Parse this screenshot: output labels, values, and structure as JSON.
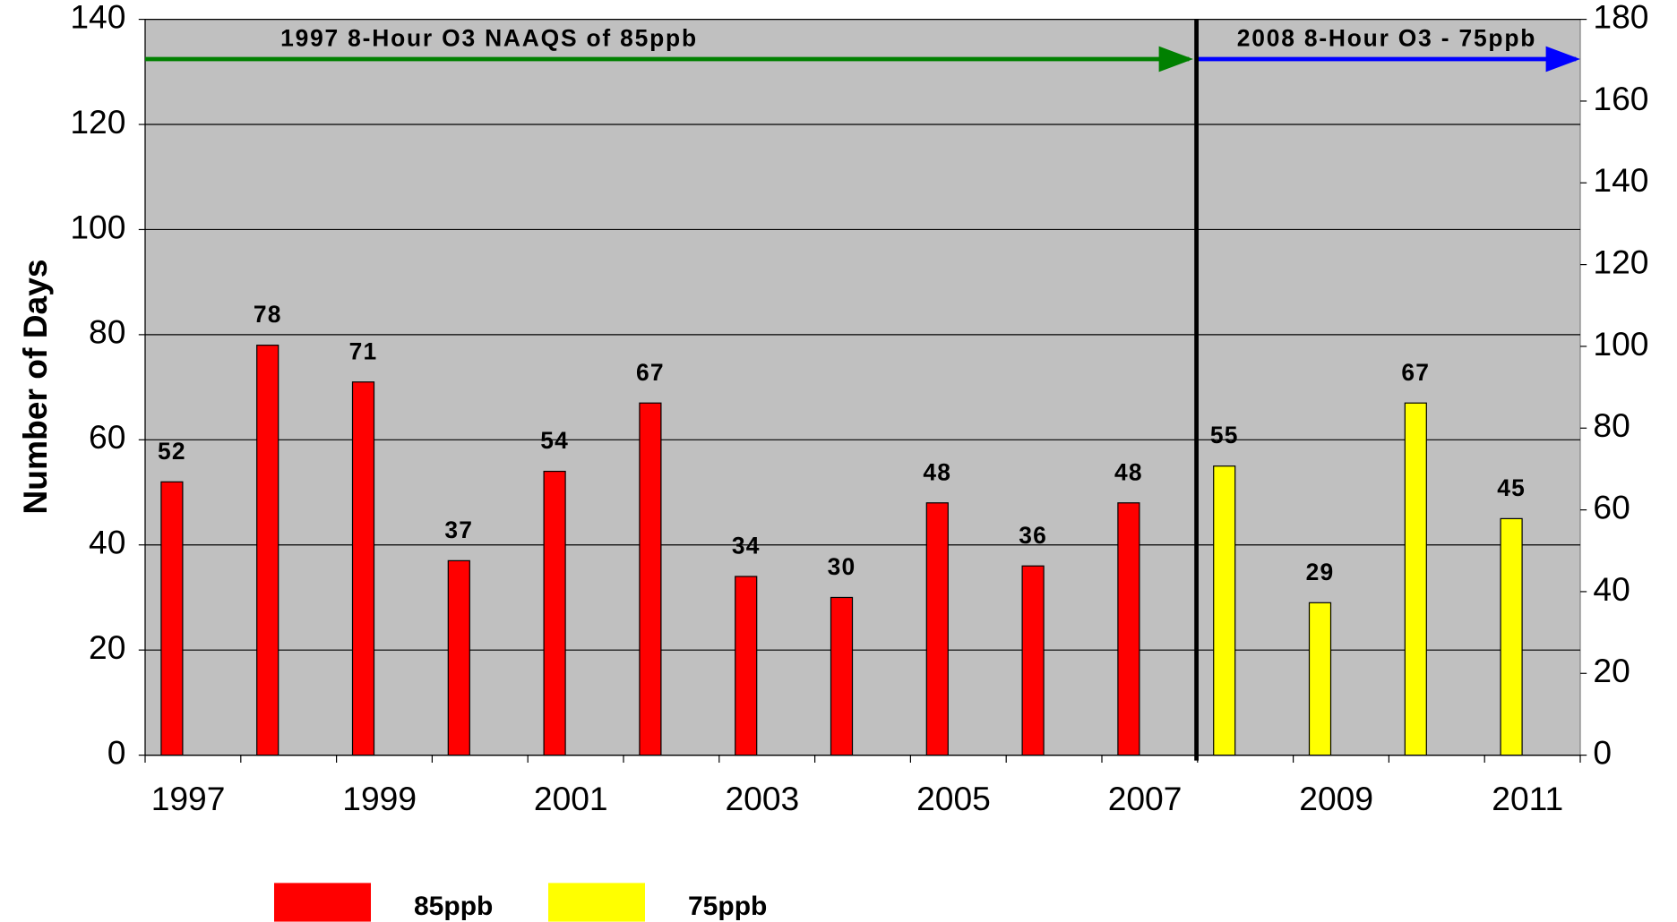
{
  "chart_data": {
    "type": "bar",
    "categories": [
      "1997",
      null,
      "1999",
      null,
      "2001",
      null,
      "2003",
      null,
      "2005",
      null,
      "2007",
      null,
      "2009",
      null,
      "2011"
    ],
    "series": [
      {
        "name": "85ppb",
        "color": "#ff0000",
        "values": [
          52,
          78,
          71,
          37,
          54,
          67,
          34,
          30,
          48,
          36,
          48,
          null,
          null,
          null,
          null
        ]
      },
      {
        "name": "75ppb",
        "color": "#ffff00",
        "values": [
          null,
          null,
          null,
          null,
          null,
          null,
          null,
          null,
          null,
          null,
          null,
          55,
          29,
          67,
          45
        ]
      }
    ],
    "y_label": "Number of Days",
    "ylim": [
      0,
      140
    ],
    "yticks": [
      0,
      20,
      40,
      60,
      80,
      100,
      120,
      140
    ],
    "y2lim": [
      0,
      180
    ],
    "y2ticks": [
      0,
      20,
      40,
      60,
      80,
      100,
      120,
      140,
      160,
      180
    ],
    "annotations": [
      "1997 8-Hour O3 NAAQS of 85ppb",
      "2008 8-Hour O3 - 75ppb"
    ],
    "grid": true,
    "legend": "bottom"
  }
}
